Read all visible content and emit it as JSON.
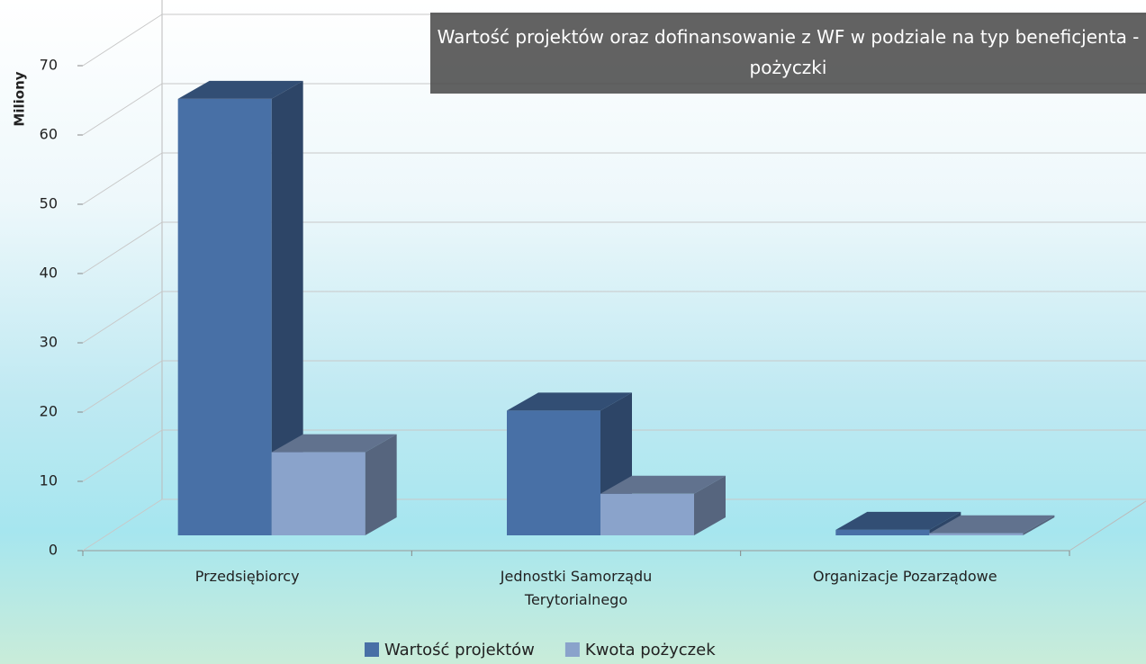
{
  "chart_data": {
    "type": "bar3d",
    "title": "Wartość projektów oraz dofinansowanie z WF w podziale na typ beneficjenta - pożyczki",
    "y_label": "Miliony",
    "categories": [
      "Przedsiębiorcy",
      "Jednostki Samorządu Terytorialnego",
      "Organizacje Pozarządowe"
    ],
    "series": [
      {
        "name": "Wartość projektów",
        "color": "#4870a6",
        "values": [
          63,
          18,
          0.8
        ]
      },
      {
        "name": "Kwota pożyczek",
        "color": "#8aa3cb",
        "values": [
          12,
          6,
          0.3
        ]
      }
    ],
    "ylim": [
      0,
      70
    ],
    "yticks": [
      0,
      10,
      20,
      30,
      40,
      50,
      60,
      70
    ],
    "grid": true,
    "legend": "bottom"
  }
}
